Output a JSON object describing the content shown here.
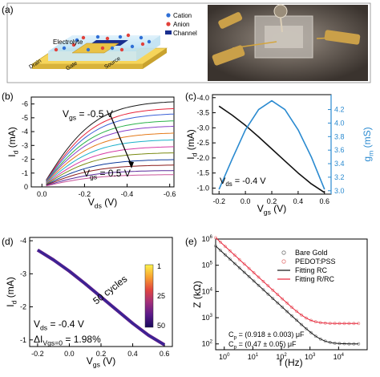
{
  "panels": {
    "a": "(a)",
    "b": "(b)",
    "c": "(c)",
    "d": "(d)",
    "e": "(e)"
  },
  "schematic": {
    "electrolyte": "Electrolyte",
    "drain": "Drain",
    "gate": "Gate",
    "source": "Source",
    "legend": [
      {
        "label": "Cation",
        "color": "#2f6fd6"
      },
      {
        "label": "Anion",
        "color": "#e2413a"
      },
      {
        "label": "Channel",
        "color": "#1a2f8f"
      }
    ]
  },
  "chart_data": [
    {
      "id": "b",
      "type": "line",
      "xlabel_main": "V",
      "xlabel_sub": "ds",
      "xlabel_unit": " (V)",
      "ylabel_main": "I",
      "ylabel_sub": "d",
      "ylabel_unit": " (mA)",
      "xlim": [
        0.05,
        -0.62
      ],
      "ylim": [
        0,
        -6.5
      ],
      "xticks": [
        0.0,
        -0.2,
        -0.4,
        -0.6
      ],
      "xtick_labels": [
        "0.0",
        "-0.2",
        "-0.4",
        "-0.6"
      ],
      "yticks": [
        0,
        -1,
        -2,
        -3,
        -4,
        -5,
        -6
      ],
      "ytick_labels": [
        "0",
        "-1",
        "-2",
        "-3",
        "-4",
        "-5",
        "-6"
      ],
      "gate_start": -0.5,
      "gate_end": 0.5,
      "annot_top": {
        "main": "V",
        "sub": "gs",
        "rest": " = -0.5 V"
      },
      "annot_bottom": {
        "main": "V",
        "sub": "gs",
        "rest": " = 0.5 V"
      },
      "x_start": -0.02,
      "curves": [
        {
          "vgs": -0.5,
          "color": "#1a1a1a",
          "isat": -6.25,
          "k": 9
        },
        {
          "vgs": -0.4,
          "color": "#e8233a",
          "isat": -5.75,
          "k": 9
        },
        {
          "vgs": -0.3,
          "color": "#3a5fd6",
          "isat": -5.35,
          "k": 9
        },
        {
          "vgs": -0.2,
          "color": "#2ab24a",
          "isat": -4.85,
          "k": 9
        },
        {
          "vgs": -0.1,
          "color": "#8a3fc7",
          "isat": -4.45,
          "k": 9
        },
        {
          "vgs": 0.0,
          "color": "#e57a19",
          "isat": -3.95,
          "k": 9
        },
        {
          "vgs": 0.1,
          "color": "#1bb0c9",
          "isat": -3.45,
          "k": 9
        },
        {
          "vgs": 0.2,
          "color": "#d63aa5",
          "isat": -2.95,
          "k": 9
        },
        {
          "vgs": 0.3,
          "color": "#7a8a12",
          "isat": -2.5,
          "k": 9
        },
        {
          "vgs": 0.35,
          "color": "#0f3a9a",
          "isat": -2.0,
          "k": 9
        },
        {
          "vgs": 0.4,
          "color": "#8a1a1a",
          "isat": -1.6,
          "k": 9
        },
        {
          "vgs": 0.45,
          "color": "#5a2a9a",
          "isat": -1.2,
          "k": 9
        },
        {
          "vgs": 0.5,
          "color": "#c9559a",
          "isat": -0.9,
          "k": 9
        }
      ]
    },
    {
      "id": "c",
      "type": "line",
      "xlabel_main": "V",
      "xlabel_sub": "gs",
      "xlabel_unit": " (V)",
      "ylabel_main": "I",
      "ylabel_sub": "d",
      "ylabel_unit": " (mA)",
      "y2label_main": "g",
      "y2label_sub": "m",
      "y2label_unit": " (mS)",
      "xlim": [
        -0.25,
        0.65
      ],
      "ylim": [
        -0.8,
        -4.1
      ],
      "y2lim": [
        2.95,
        4.42
      ],
      "xticks": [
        -0.2,
        0.0,
        0.2,
        0.4,
        0.6
      ],
      "xtick_labels": [
        "-0.2",
        "0.0",
        "0.2",
        "0.4",
        "0.6"
      ],
      "yticks": [
        -1.0,
        -1.5,
        -2.0,
        -2.5,
        -3.0,
        -3.5,
        -4.0
      ],
      "ytick_labels": [
        "-1.0",
        "-1.5",
        "-2.0",
        "-2.5",
        "-3.0",
        "-3.5",
        "-4.0"
      ],
      "y2ticks": [
        3.0,
        3.2,
        3.4,
        3.6,
        3.8,
        4.0,
        4.2
      ],
      "y2tick_labels": [
        "3.0",
        "3.2",
        "3.4",
        "3.6",
        "3.8",
        "4.0",
        "4.2"
      ],
      "annot": {
        "main": "V",
        "sub": "ds",
        "rest": " = -0.4 V"
      },
      "series": [
        {
          "kind": "Id",
          "color": "#111111",
          "x": [
            -0.2,
            -0.1,
            0.0,
            0.1,
            0.2,
            0.3,
            0.4,
            0.5,
            0.6
          ],
          "y": [
            -3.72,
            -3.42,
            -3.08,
            -2.7,
            -2.3,
            -1.9,
            -1.5,
            -1.14,
            -0.85
          ]
        },
        {
          "kind": "gm",
          "color": "#2a8ad0",
          "x": [
            -0.2,
            -0.1,
            0.0,
            0.1,
            0.2,
            0.3,
            0.4,
            0.5,
            0.6
          ],
          "y": [
            3.02,
            3.47,
            3.9,
            4.2,
            4.33,
            4.2,
            3.9,
            3.5,
            3.02
          ]
        }
      ]
    },
    {
      "id": "d",
      "type": "line",
      "xlabel_main": "V",
      "xlabel_sub": "gs",
      "xlabel_unit": " (V)",
      "ylabel_main": "I",
      "ylabel_sub": "d",
      "ylabel_unit": " (mA)",
      "xlim": [
        -0.25,
        0.65
      ],
      "ylim": [
        -0.8,
        -4.1
      ],
      "xticks": [
        -0.2,
        0.0,
        0.2,
        0.4,
        0.6
      ],
      "xtick_labels": [
        "-0.2",
        "0.0",
        "0.2",
        "0.4",
        "0.6"
      ],
      "yticks": [
        -1,
        -2,
        -3,
        -4
      ],
      "ytick_labels": [
        "-1",
        "-2",
        "-3",
        "-4"
      ],
      "annot_cycles": "50 cycles",
      "annot_vds": {
        "main": "V",
        "sub": "ds",
        "rest": " = -0.4 V"
      },
      "annot_delta": {
        "pre": "ΔI",
        "sub": "Vgs=0",
        "rest": " = 1.98%"
      },
      "colorbar_ticks": [
        "1",
        "25",
        "50"
      ],
      "colorbar_colors": [
        "#fcf34a",
        "#f8a030",
        "#e2463f",
        "#a22f7a",
        "#5a1a8a",
        "#1a0a5c"
      ],
      "series": [
        {
          "color": "#2a2a9a",
          "x": [
            -0.2,
            -0.1,
            0.0,
            0.1,
            0.2,
            0.3,
            0.4,
            0.5,
            0.6
          ],
          "y": [
            -3.72,
            -3.42,
            -3.08,
            -2.7,
            -2.3,
            -1.9,
            -1.5,
            -1.14,
            -0.85
          ]
        }
      ]
    },
    {
      "id": "e",
      "type": "scatter",
      "xlabel": "f (Hz)",
      "ylabel_main": "Z",
      "ylabel_unit": " (kΩ)",
      "xscale": "log",
      "yscale": "log",
      "xlim": [
        0.5,
        100000
      ],
      "ylim": [
        60,
        1000000
      ],
      "xticks_exp": [
        0,
        1,
        2,
        3,
        4
      ],
      "yticks_exp": [
        2,
        3,
        4,
        5,
        6
      ],
      "legend": [
        {
          "label": "Bare Gold",
          "kind": "marker",
          "color": "#777777"
        },
        {
          "label": "PEDOT:PSS",
          "kind": "marker",
          "color": "#e57b7b"
        },
        {
          "label": "Fitting RC",
          "kind": "line",
          "color": "#111111"
        },
        {
          "label": "Fitting R/RC",
          "kind": "line",
          "color": "#e8233a"
        }
      ],
      "annot_c1": {
        "main": "C",
        "sub": "p",
        "rest": " = (0.918 ± 0.003) μF"
      },
      "annot_c2": {
        "main": "C",
        "sub": "p",
        "rest": " = (0.47 ± 0.05) μF"
      },
      "series": [
        {
          "name": "Bare Gold",
          "r": 100,
          "c_coef": 270000,
          "color": "#777777",
          "fit": "#111111"
        },
        {
          "name": "PEDOT:PSS",
          "r": 600,
          "c_coef": 560000,
          "color": "#e57b7b",
          "fit": "#e8233a"
        }
      ]
    }
  ]
}
